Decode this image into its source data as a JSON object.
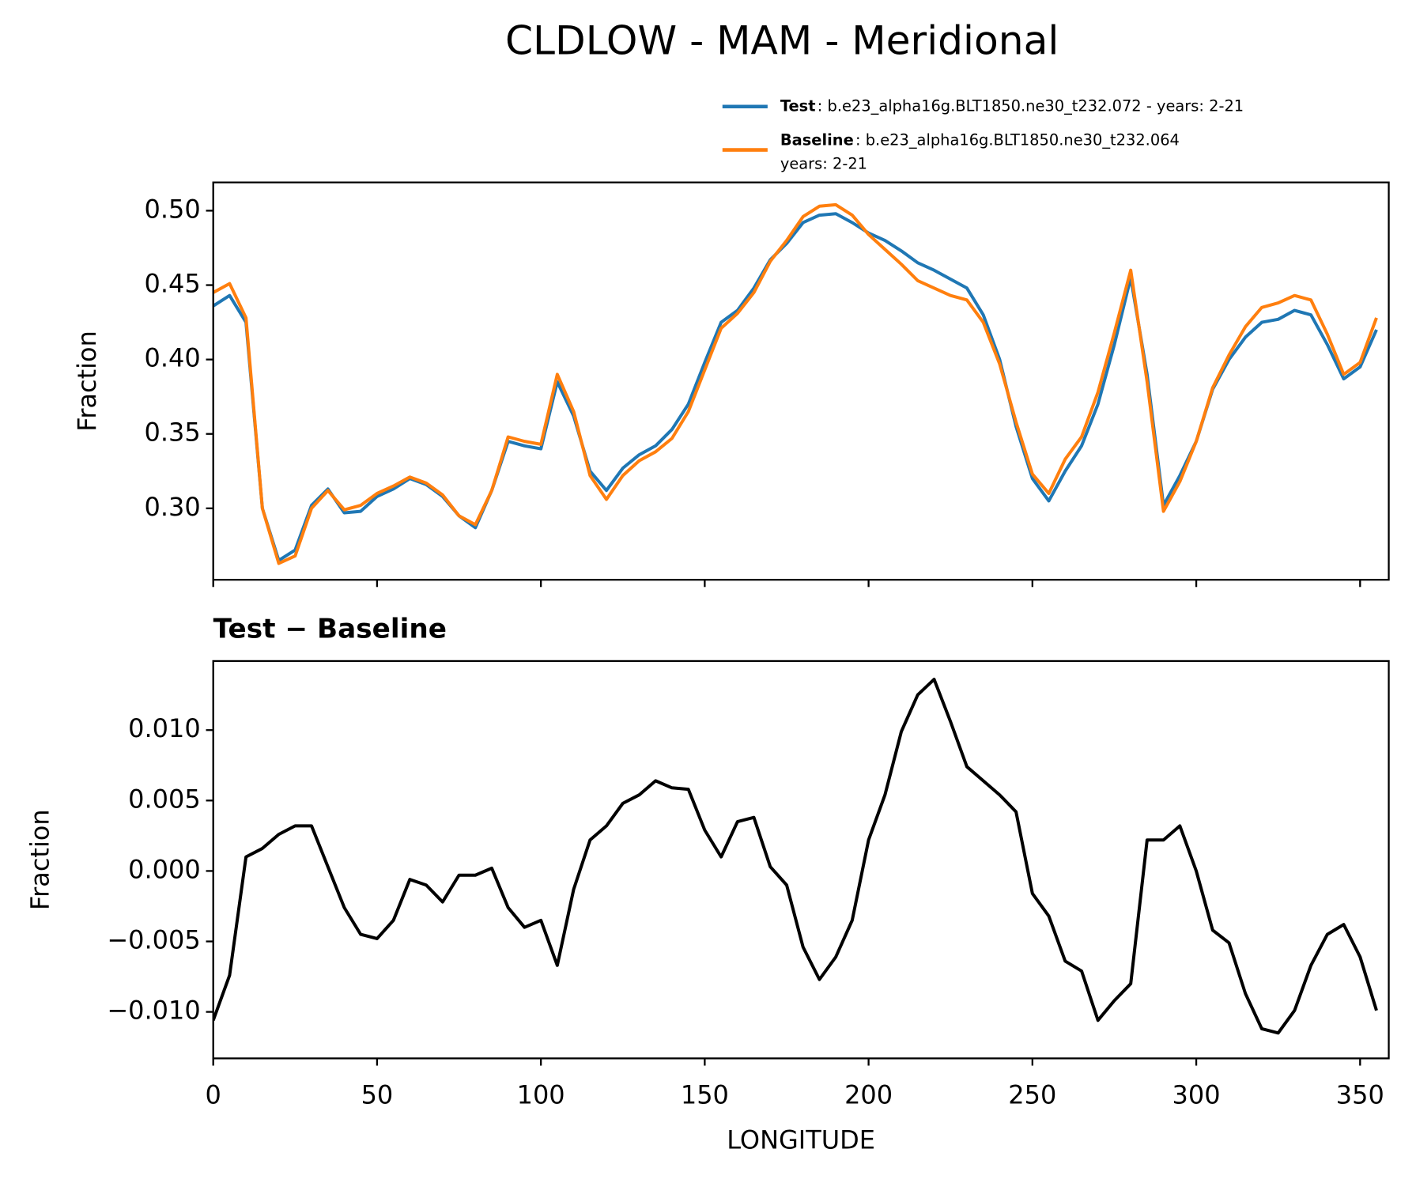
{
  "chart_data": [
    {
      "type": "line",
      "title": "CLDLOW - MAM - Meridional",
      "ylabel": "Fraction",
      "x": [
        0,
        5,
        10,
        15,
        20,
        25,
        30,
        35,
        40,
        45,
        50,
        55,
        60,
        65,
        70,
        75,
        80,
        85,
        90,
        95,
        100,
        105,
        110,
        115,
        120,
        125,
        130,
        135,
        140,
        145,
        150,
        155,
        160,
        165,
        170,
        175,
        180,
        185,
        190,
        195,
        200,
        205,
        210,
        215,
        220,
        225,
        230,
        235,
        240,
        245,
        250,
        255,
        260,
        265,
        270,
        275,
        280,
        285,
        290,
        295,
        300,
        305,
        310,
        315,
        320,
        325,
        330,
        335,
        340,
        345,
        350,
        355
      ],
      "series": [
        {
          "name": "Test",
          "legend_text": [
            ": b.e23_alpha16g.BLT1850.ne30_t232.072 - years: 2-21"
          ],
          "color": "#1f77b4",
          "values": [
            0.436,
            0.443,
            0.425,
            0.3,
            0.265,
            0.272,
            0.302,
            0.313,
            0.297,
            0.298,
            0.308,
            0.313,
            0.32,
            0.316,
            0.308,
            0.295,
            0.287,
            0.312,
            0.345,
            0.342,
            0.34,
            0.385,
            0.362,
            0.325,
            0.312,
            0.327,
            0.336,
            0.342,
            0.353,
            0.37,
            0.398,
            0.425,
            0.433,
            0.448,
            0.467,
            0.478,
            0.492,
            0.497,
            0.498,
            0.492,
            0.485,
            0.48,
            0.473,
            0.465,
            0.46,
            0.454,
            0.448,
            0.43,
            0.4,
            0.355,
            0.32,
            0.305,
            0.325,
            0.342,
            0.37,
            0.41,
            0.455,
            0.39,
            0.302,
            0.322,
            0.345,
            0.38,
            0.4,
            0.415,
            0.425,
            0.427,
            0.433,
            0.43,
            0.41,
            0.387,
            0.395,
            0.42
          ]
        },
        {
          "name": "Baseline",
          "legend_text": [
            ": b.e23_alpha16g.BLT1850.ne30_t232.064",
            "years: 2-21"
          ],
          "color": "#ff7f0e",
          "values": [
            0.445,
            0.451,
            0.428,
            0.3,
            0.263,
            0.268,
            0.3,
            0.312,
            0.299,
            0.302,
            0.31,
            0.315,
            0.321,
            0.317,
            0.309,
            0.295,
            0.289,
            0.312,
            0.348,
            0.345,
            0.343,
            0.39,
            0.365,
            0.322,
            0.306,
            0.322,
            0.332,
            0.338,
            0.347,
            0.365,
            0.393,
            0.421,
            0.431,
            0.445,
            0.466,
            0.48,
            0.496,
            0.503,
            0.504,
            0.497,
            0.484,
            0.474,
            0.464,
            0.453,
            0.448,
            0.443,
            0.44,
            0.425,
            0.397,
            0.358,
            0.323,
            0.31,
            0.333,
            0.348,
            0.378,
            0.418,
            0.46,
            0.385,
            0.298,
            0.318,
            0.345,
            0.381,
            0.403,
            0.422,
            0.435,
            0.438,
            0.443,
            0.44,
            0.417,
            0.39,
            0.398,
            0.428
          ]
        }
      ],
      "xlim": [
        0,
        358.75
      ],
      "xticks": [
        0,
        50,
        100,
        150,
        200,
        250,
        300,
        350
      ],
      "ylim": [
        0.252,
        0.519
      ],
      "yticks": [
        {
          "value": 0.3,
          "label": "0.30"
        },
        {
          "value": 0.35,
          "label": "0.35"
        },
        {
          "value": 0.4,
          "label": "0.40"
        },
        {
          "value": 0.45,
          "label": "0.45"
        },
        {
          "value": 0.5,
          "label": "0.50"
        }
      ]
    },
    {
      "type": "line",
      "title": "Test − Baseline",
      "ylabel": "Fraction",
      "xlabel": "LONGITUDE",
      "x": [
        0,
        5,
        10,
        15,
        20,
        25,
        30,
        35,
        40,
        45,
        50,
        55,
        60,
        65,
        70,
        75,
        80,
        85,
        90,
        95,
        100,
        105,
        110,
        115,
        120,
        125,
        130,
        135,
        140,
        145,
        150,
        155,
        160,
        165,
        170,
        175,
        180,
        185,
        190,
        195,
        200,
        205,
        210,
        215,
        220,
        225,
        230,
        235,
        240,
        245,
        250,
        255,
        260,
        265,
        270,
        275,
        280,
        285,
        290,
        295,
        300,
        305,
        310,
        315,
        320,
        325,
        330,
        335,
        340,
        345,
        350,
        355
      ],
      "series": [
        {
          "color": "#000000",
          "values": [
            -0.0106,
            -0.0074,
            0.001,
            0.0016,
            0.0026,
            0.0032,
            0.0032,
            0.0003,
            -0.0026,
            -0.0045,
            -0.0048,
            -0.0035,
            -0.0006,
            -0.001,
            -0.0022,
            -0.0003,
            -0.0003,
            0.0002,
            -0.0026,
            -0.004,
            -0.0035,
            -0.0067,
            -0.0013,
            0.0022,
            0.0032,
            0.0048,
            0.0054,
            0.0064,
            0.0059,
            0.0058,
            0.0029,
            0.001,
            0.0035,
            0.0038,
            0.0003,
            -0.001,
            -0.0054,
            -0.0077,
            -0.0061,
            -0.0035,
            0.0022,
            0.0054,
            0.0099,
            0.0125,
            0.0136,
            0.0106,
            0.0074,
            0.0064,
            0.0054,
            0.0042,
            -0.0016,
            -0.0032,
            -0.0064,
            -0.0071,
            -0.0106,
            -0.0092,
            -0.008,
            0.0022,
            0.0022,
            0.0032,
            0,
            -0.0042,
            -0.0051,
            -0.0087,
            -0.0112,
            -0.0115,
            -0.0099,
            -0.0067,
            -0.0045,
            -0.0038,
            -0.0061,
            -0.0099
          ]
        }
      ],
      "xlim": [
        0,
        358.75
      ],
      "xticks": [
        0,
        50,
        100,
        150,
        200,
        250,
        300,
        350
      ],
      "ylim": [
        -0.0133,
        0.0149
      ],
      "yticks": [
        {
          "value": -0.01,
          "label": "−0.010"
        },
        {
          "value": -0.005,
          "label": "−0.005"
        },
        {
          "value": 0,
          "label": "0.000"
        },
        {
          "value": 0.005,
          "label": "0.005"
        },
        {
          "value": 0.01,
          "label": "0.010"
        }
      ]
    }
  ]
}
